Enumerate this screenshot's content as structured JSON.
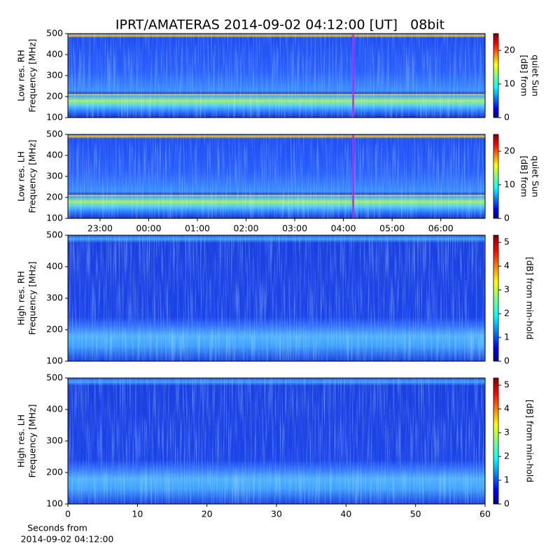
{
  "chart_data": [
    {
      "type": "heatmap",
      "title": "IPRT/AMATERAS 2014-09-02 04:12:00 [UT]   08bit",
      "ylabel": [
        "Low res. RH",
        "Frequency [MHz]"
      ],
      "ylim": [
        100,
        500
      ],
      "yticks": [
        100,
        200,
        300,
        400,
        500
      ],
      "xlim": [
        22.34,
        30.91
      ],
      "marker_x": 28.2,
      "marker_color": "#d020e0",
      "colormap": "jet",
      "colorbar_label": [
        "[dB] from",
        "quiet Sun"
      ],
      "clim": [
        0,
        25
      ],
      "cticks": [
        0,
        10,
        20
      ]
    },
    {
      "type": "heatmap",
      "ylabel": [
        "Low res. LH",
        "Frequency [MHz]"
      ],
      "ylim": [
        100,
        500
      ],
      "yticks": [
        100,
        200,
        300,
        400,
        500
      ],
      "xlim": [
        22.34,
        30.91
      ],
      "xticks": [
        {
          "value": 23,
          "label": "23:00"
        },
        {
          "value": 24,
          "label": "00:00"
        },
        {
          "value": 25,
          "label": "01:00"
        },
        {
          "value": 26,
          "label": "02:00"
        },
        {
          "value": 27,
          "label": "03:00"
        },
        {
          "value": 28,
          "label": "04:00"
        },
        {
          "value": 29,
          "label": "05:00"
        },
        {
          "value": 30,
          "label": "06:00"
        }
      ],
      "marker_x": 28.2,
      "marker_color": "#d020e0",
      "colormap": "jet",
      "colorbar_label": [
        "[dB] from",
        "quiet Sun"
      ],
      "clim": [
        0,
        25
      ],
      "cticks": [
        0,
        10,
        20
      ]
    },
    {
      "type": "heatmap",
      "ylabel": [
        "High res. RH",
        "Frequency [MHz]"
      ],
      "ylim": [
        100,
        500
      ],
      "yticks": [
        100,
        200,
        300,
        400,
        500
      ],
      "xlim": [
        0,
        60
      ],
      "colormap": "jet",
      "colorbar_label": [
        "[dB] from min-hold"
      ],
      "clim": [
        0,
        5.3
      ],
      "cticks": [
        0,
        1,
        2,
        3,
        4,
        5
      ]
    },
    {
      "type": "heatmap",
      "ylabel": [
        "High res. LH",
        "Frequency [MHz]"
      ],
      "ylim": [
        100,
        500
      ],
      "yticks": [
        100,
        200,
        300,
        400,
        500
      ],
      "xlim": [
        0,
        60
      ],
      "xticks": [
        0,
        10,
        20,
        30,
        40,
        50,
        60
      ],
      "xlabel": [
        "Seconds from",
        "2014-09-02 04:12:00"
      ],
      "colormap": "jet",
      "colorbar_label": [
        "[dB] from min-hold"
      ],
      "clim": [
        0,
        5.3
      ],
      "cticks": [
        0,
        1,
        2,
        3,
        4,
        5
      ]
    }
  ]
}
